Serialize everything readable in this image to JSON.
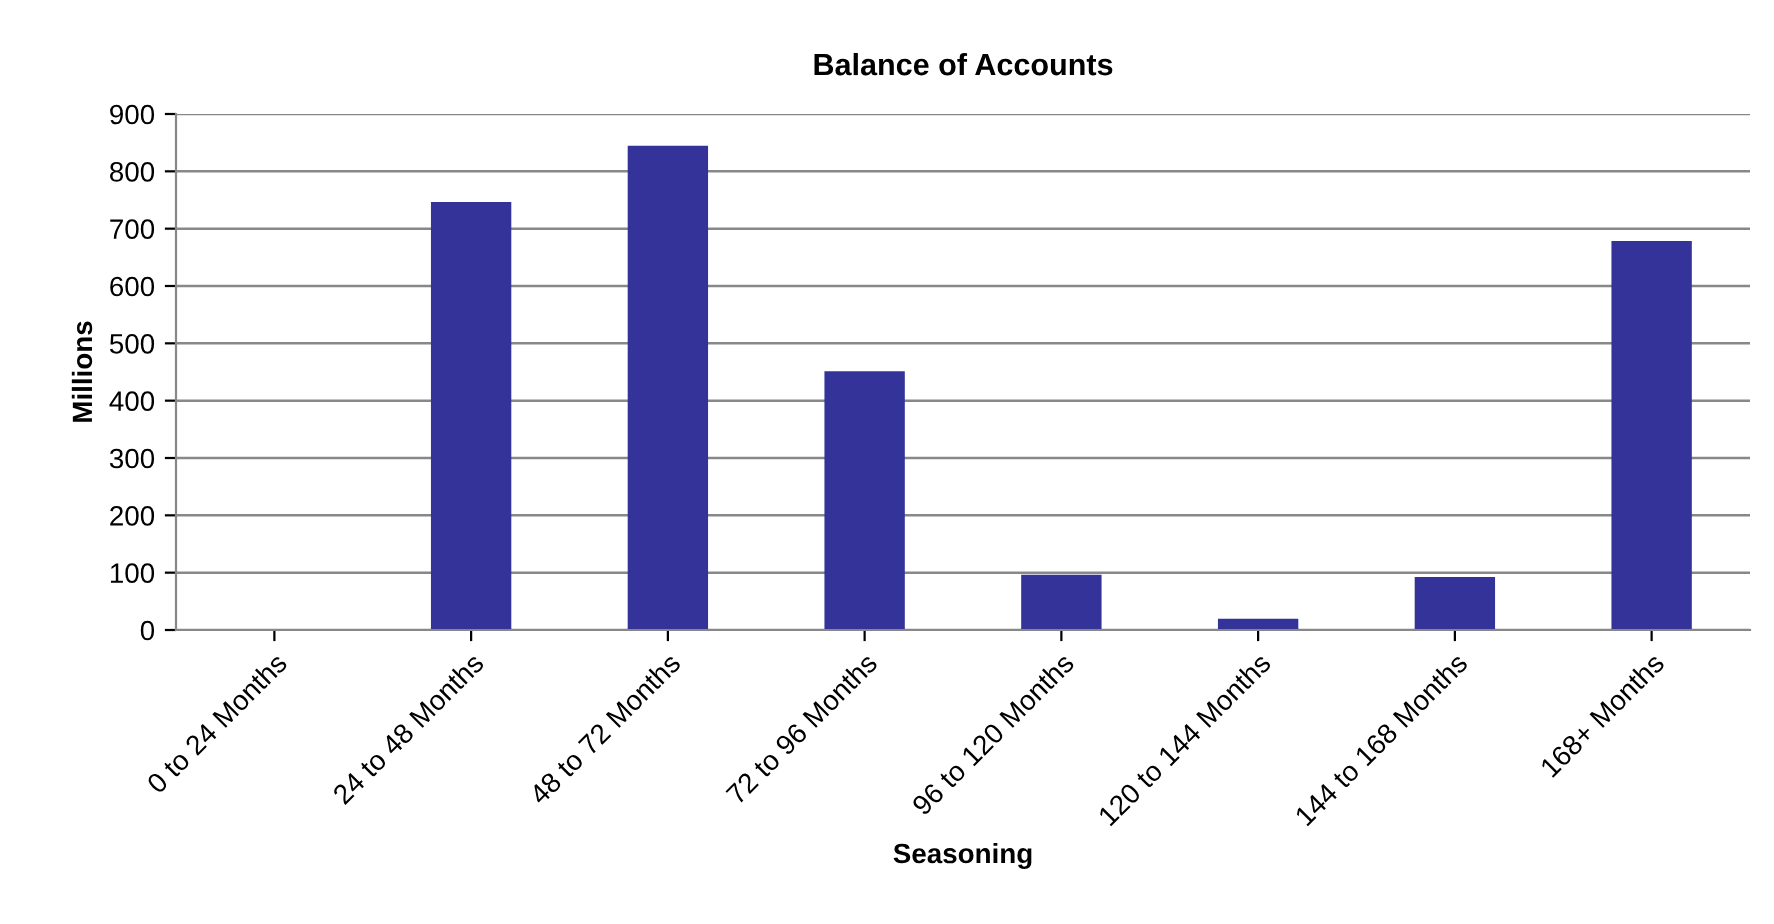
{
  "chart_data": {
    "type": "bar",
    "title": "Balance of Accounts",
    "xlabel": "Seasoning",
    "ylabel": "Millions",
    "categories": [
      "0 to 24 Months",
      "24 to 48 Months",
      "48 to 72 Months",
      "72 to 96 Months",
      "96 to 120 Months",
      "120 to 144 Months",
      "144 to 168 Months",
      "168+ Months"
    ],
    "values": [
      0,
      745,
      843,
      450,
      95,
      18,
      91,
      677
    ],
    "color": "#333399",
    "ylim": [
      0,
      900
    ],
    "yticks": [
      0,
      100,
      200,
      300,
      400,
      500,
      600,
      700,
      800,
      900
    ],
    "grid": "y"
  }
}
